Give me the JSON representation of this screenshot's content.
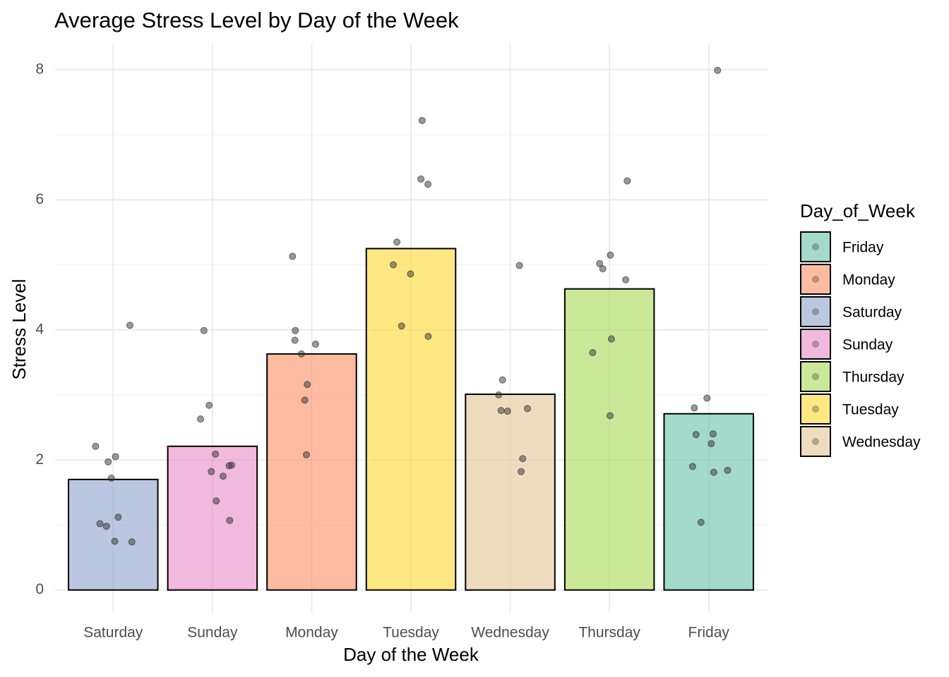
{
  "chart_data": {
    "type": "bar",
    "title": "Average Stress Level by Day of the Week",
    "x_label": "Day of the Week",
    "y_label": "Stress Level",
    "categories": [
      "Saturday",
      "Sunday",
      "Monday",
      "Tuesday",
      "Wednesday",
      "Thursday",
      "Friday"
    ],
    "values": [
      1.7,
      2.21,
      3.63,
      5.25,
      3.01,
      4.63,
      2.71
    ],
    "colors": [
      "#8da0cb",
      "#e78ac3",
      "#fc8d62",
      "#ffd92f",
      "#e5c494",
      "#a6d854",
      "#66c2a5"
    ],
    "points": [
      [
        4.07,
        2.21,
        2.05,
        1.97,
        1.72,
        1.12,
        1.02,
        0.98,
        0.75,
        0.74
      ],
      [
        3.99,
        2.84,
        2.63,
        2.09,
        1.92,
        1.91,
        1.82,
        1.75,
        1.37,
        1.07
      ],
      [
        5.13,
        3.99,
        3.84,
        3.78,
        3.63,
        3.16,
        2.92,
        2.08
      ],
      [
        7.22,
        6.32,
        6.24,
        5.35,
        5.0,
        4.86,
        4.06,
        3.9
      ],
      [
        4.99,
        3.23,
        3.0,
        2.79,
        2.76,
        2.75,
        2.02,
        1.82
      ],
      [
        6.29,
        5.15,
        5.02,
        4.94,
        4.77,
        3.86,
        3.65,
        2.68
      ],
      [
        7.99,
        2.95,
        2.8,
        2.4,
        2.39,
        2.25,
        1.9,
        1.84,
        1.81,
        1.04
      ]
    ],
    "point_color": "#333333",
    "ylim": [
      -0.34,
      8.4
    ],
    "yticks": [
      0,
      2,
      4,
      6,
      8
    ],
    "minor_yticks": [
      1,
      3,
      5,
      7
    ],
    "grid": true,
    "legend": {
      "title": "Day_of_Week",
      "position": "right",
      "entries": [
        {
          "name": "Friday",
          "color": "#66c2a5"
        },
        {
          "name": "Monday",
          "color": "#fc8d62"
        },
        {
          "name": "Saturday",
          "color": "#8da0cb"
        },
        {
          "name": "Sunday",
          "color": "#e78ac3"
        },
        {
          "name": "Thursday",
          "color": "#a6d854"
        },
        {
          "name": "Tuesday",
          "color": "#ffd92f"
        },
        {
          "name": "Wednesday",
          "color": "#e5c494"
        }
      ]
    }
  }
}
